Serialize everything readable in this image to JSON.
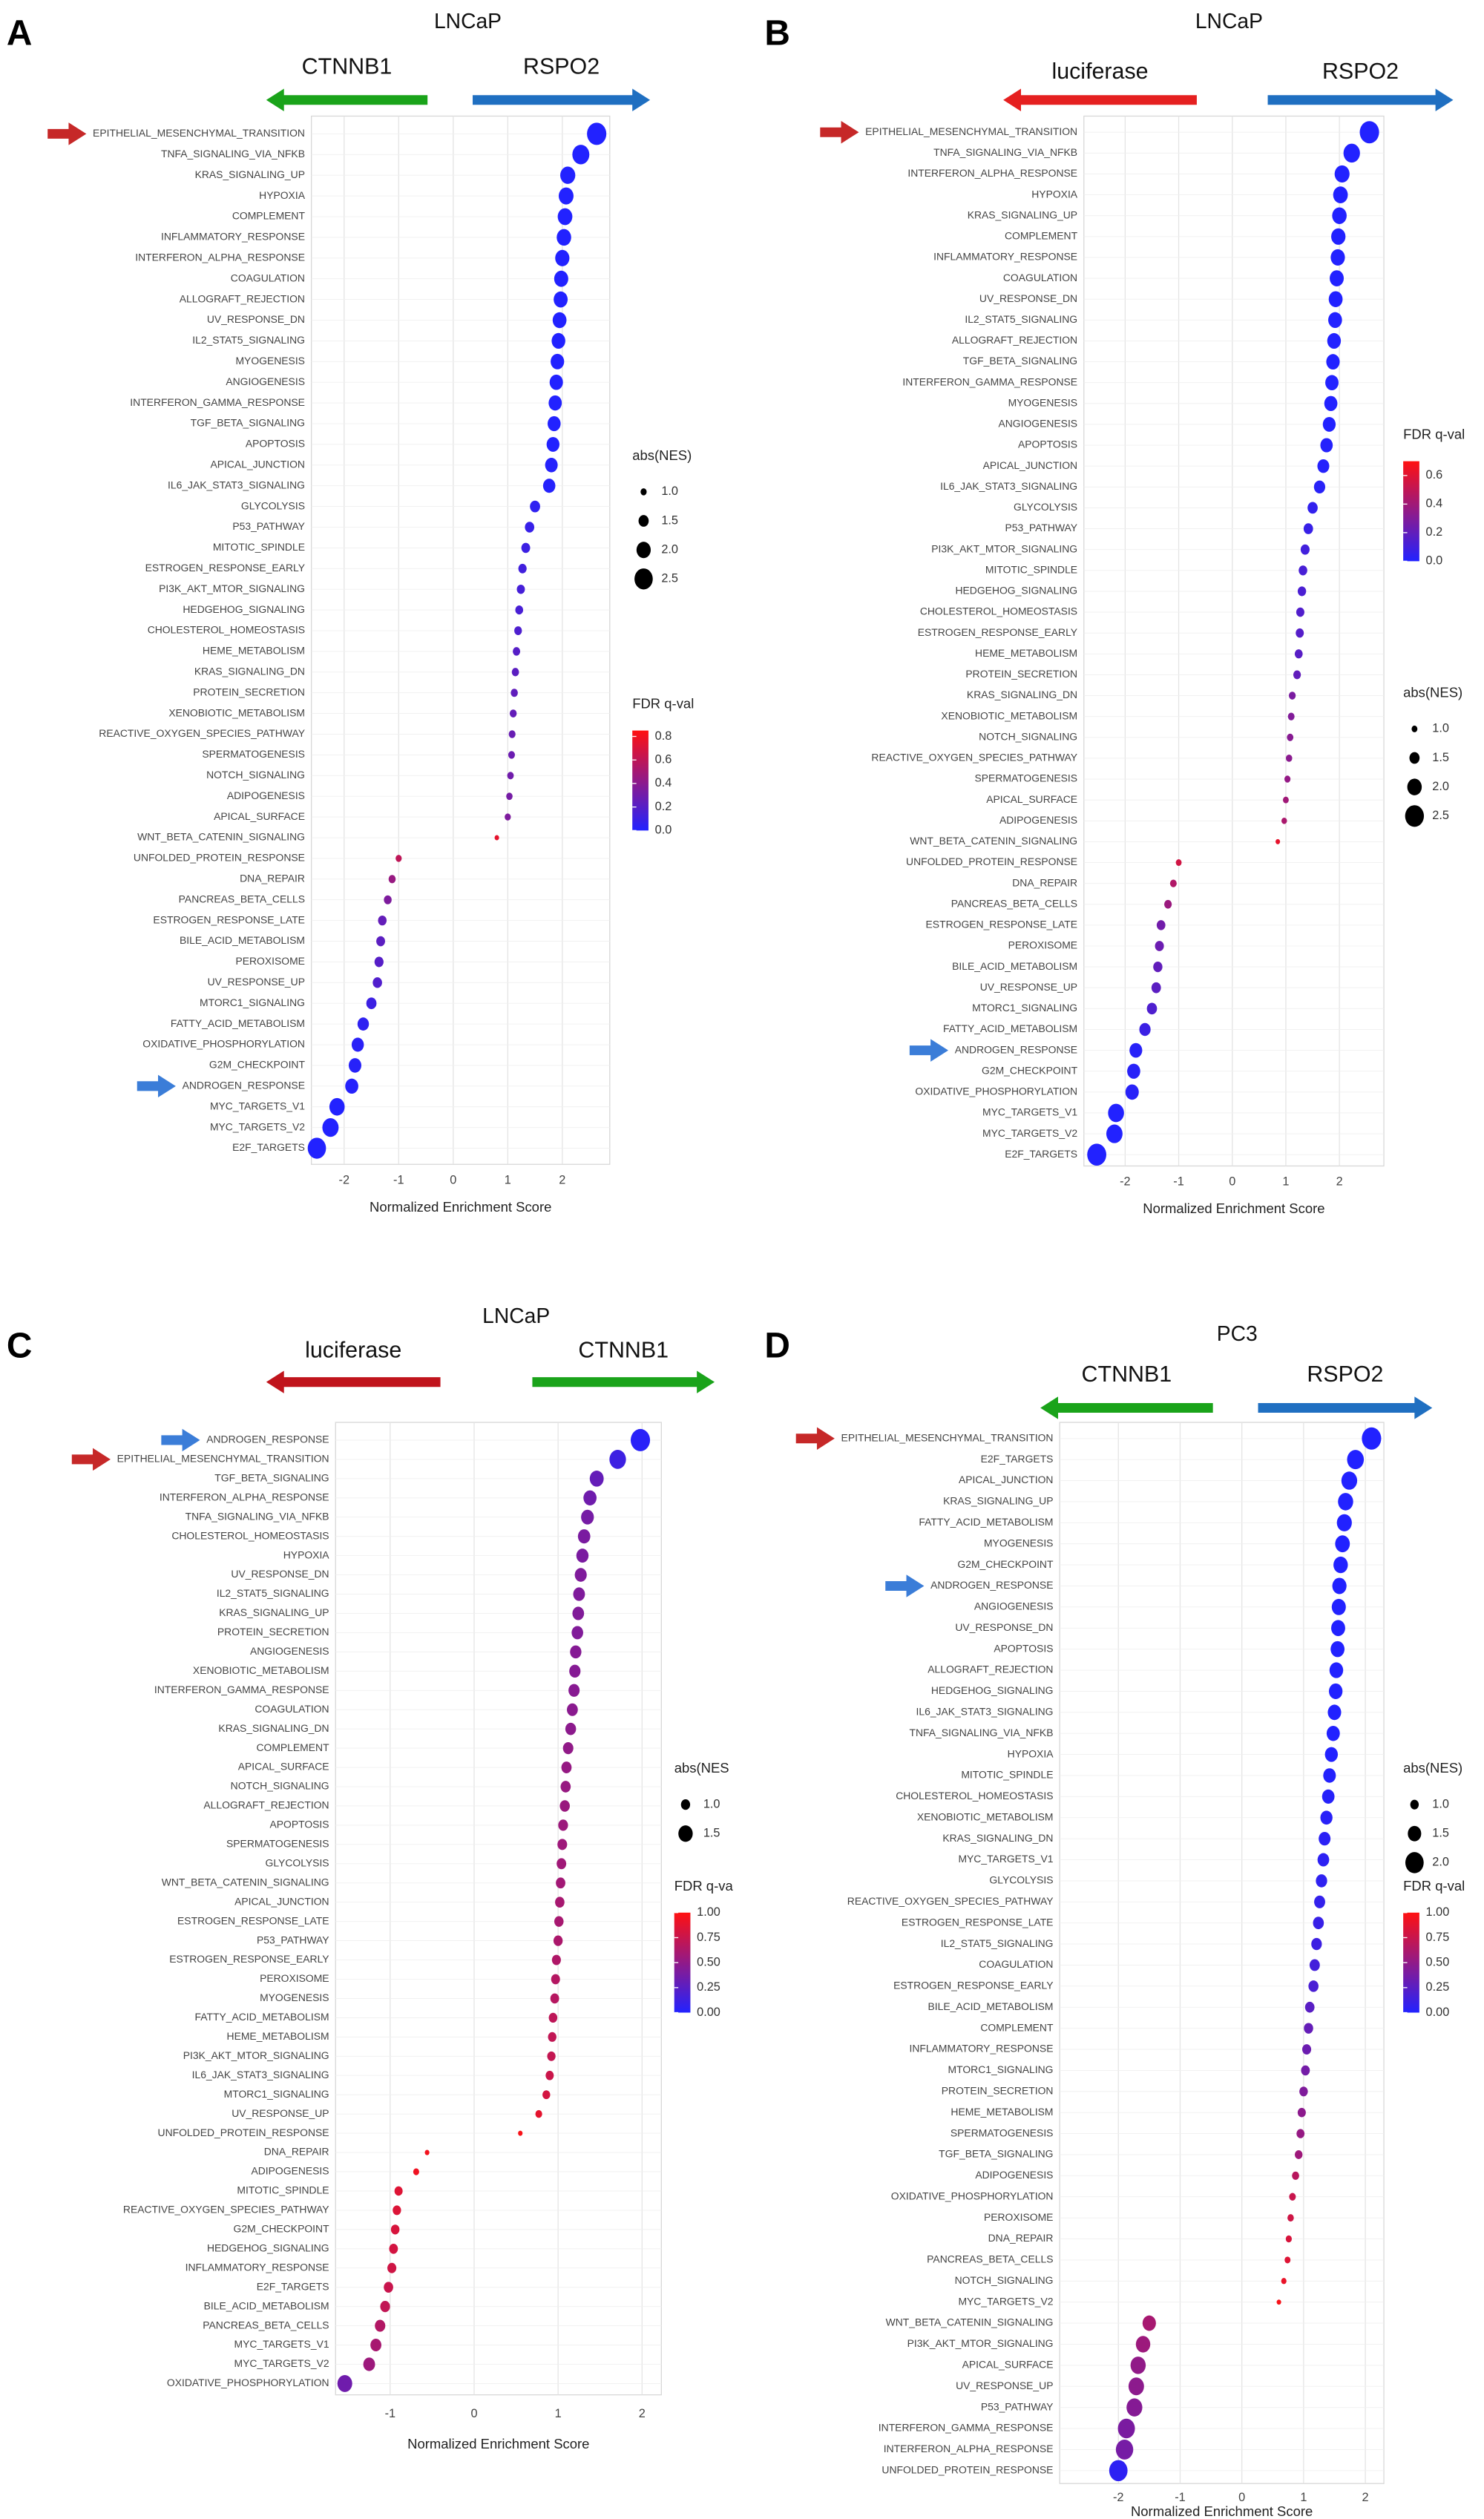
{
  "chart_data": [
    {
      "type": "dot",
      "panel": "A",
      "title": "LNCaP",
      "arrows": [
        {
          "label": "CTNNB1",
          "color": "#1aa31a",
          "dir": "left"
        },
        {
          "label": "RSPO2",
          "color": "#1f6fc1",
          "dir": "right"
        }
      ],
      "categories": [
        "EPITHELIAL_MESENCHYMAL_TRANSITION",
        "TNFA_SIGNALING_VIA_NFKB",
        "KRAS_SIGNALING_UP",
        "HYPOXIA",
        "COMPLEMENT",
        "INFLAMMATORY_RESPONSE",
        "INTERFERON_ALPHA_RESPONSE",
        "COAGULATION",
        "ALLOGRAFT_REJECTION",
        "UV_RESPONSE_DN",
        "IL2_STAT5_SIGNALING",
        "MYOGENESIS",
        "ANGIOGENESIS",
        "INTERFERON_GAMMA_RESPONSE",
        "TGF_BETA_SIGNALING",
        "APOPTOSIS",
        "APICAL_JUNCTION",
        "IL6_JAK_STAT3_SIGNALING",
        "GLYCOLYSIS",
        "P53_PATHWAY",
        "MITOTIC_SPINDLE",
        "ESTROGEN_RESPONSE_EARLY",
        "PI3K_AKT_MTOR_SIGNALING",
        "HEDGEHOG_SIGNALING",
        "CHOLESTEROL_HOMEOSTASIS",
        "HEME_METABOLISM",
        "KRAS_SIGNALING_DN",
        "PROTEIN_SECRETION",
        "XENOBIOTIC_METABOLISM",
        "REACTIVE_OXYGEN_SPECIES_PATHWAY",
        "SPERMATOGENESIS",
        "NOTCH_SIGNALING",
        "ADIPOGENESIS",
        "APICAL_SURFACE",
        "WNT_BETA_CATENIN_SIGNALING",
        "UNFOLDED_PROTEIN_RESPONSE",
        "DNA_REPAIR",
        "PANCREAS_BETA_CELLS",
        "ESTROGEN_RESPONSE_LATE",
        "BILE_ACID_METABOLISM",
        "PEROXISOME",
        "UV_RESPONSE_UP",
        "MTORC1_SIGNALING",
        "FATTY_ACID_METABOLISM",
        "OXIDATIVE_PHOSPHORYLATION",
        "G2M_CHECKPOINT",
        "ANDROGEN_RESPONSE",
        "MYC_TARGETS_V1",
        "MYC_TARGETS_V2",
        "E2F_TARGETS"
      ],
      "values": [
        2.63,
        2.34,
        2.1,
        2.07,
        2.05,
        2.03,
        2.0,
        1.98,
        1.97,
        1.95,
        1.93,
        1.91,
        1.89,
        1.87,
        1.85,
        1.83,
        1.8,
        1.76,
        1.5,
        1.4,
        1.33,
        1.27,
        1.24,
        1.21,
        1.19,
        1.16,
        1.14,
        1.12,
        1.1,
        1.08,
        1.07,
        1.05,
        1.03,
        1.0,
        0.8,
        -1.0,
        -1.12,
        -1.2,
        -1.3,
        -1.33,
        -1.36,
        -1.39,
        -1.5,
        -1.65,
        -1.75,
        -1.8,
        -1.86,
        -2.13,
        -2.25,
        -2.5
      ],
      "fdr": [
        0,
        0,
        0,
        0,
        0,
        0,
        0,
        0,
        0,
        0,
        0,
        0,
        0,
        0,
        0,
        0,
        0.01,
        0.01,
        0.05,
        0.08,
        0.1,
        0.12,
        0.14,
        0.15,
        0.17,
        0.2,
        0.22,
        0.24,
        0.25,
        0.27,
        0.28,
        0.3,
        0.32,
        0.35,
        0.75,
        0.6,
        0.45,
        0.35,
        0.25,
        0.22,
        0.2,
        0.18,
        0.1,
        0.05,
        0.03,
        0.02,
        0.01,
        0,
        0,
        0
      ],
      "xlim": [
        -2.6,
        2.87
      ],
      "xticks": [
        -2,
        -1,
        0,
        1,
        2
      ],
      "xlabel": "Normalized Enrichment Score",
      "grid": true,
      "size_legend": {
        "title": "abs(NES)",
        "ticks": [
          {
            "value": 1,
            "label": "1.0"
          },
          {
            "value": 1.5,
            "label": "1.5"
          },
          {
            "value": 2,
            "label": "2.0"
          },
          {
            "value": 2.5,
            "label": "2.5"
          }
        ]
      },
      "color_legend": {
        "title": "FDR q-val",
        "clim": [
          0,
          0.85
        ],
        "low_color": "#2222ff",
        "high_color": "#ff1111",
        "ticks": [
          {
            "value": 0,
            "label": "0.0"
          },
          {
            "value": 0.2,
            "label": "0.2"
          },
          {
            "value": 0.4,
            "label": "0.4"
          },
          {
            "value": 0.6,
            "label": "0.6"
          },
          {
            "value": 0.8,
            "label": "0.8"
          }
        ]
      },
      "pointers": [
        {
          "category": "EPITHELIAL_MESENCHYMAL_TRANSITION",
          "color": "#c62828"
        },
        {
          "category": "ANDROGEN_RESPONSE",
          "color": "#3b7dd8"
        }
      ]
    },
    {
      "type": "dot",
      "panel": "B",
      "title": "LNCaP",
      "arrows": [
        {
          "label": "luciferase",
          "color": "#e52020",
          "dir": "left"
        },
        {
          "label": "RSPO2",
          "color": "#1f6fc1",
          "dir": "right"
        }
      ],
      "categories": [
        "EPITHELIAL_MESENCHYMAL_TRANSITION",
        "TNFA_SIGNALING_VIA_NFKB",
        "INTERFERON_ALPHA_RESPONSE",
        "HYPOXIA",
        "KRAS_SIGNALING_UP",
        "COMPLEMENT",
        "INFLAMMATORY_RESPONSE",
        "COAGULATION",
        "UV_RESPONSE_DN",
        "IL2_STAT5_SIGNALING",
        "ALLOGRAFT_REJECTION",
        "TGF_BETA_SIGNALING",
        "INTERFERON_GAMMA_RESPONSE",
        "MYOGENESIS",
        "ANGIOGENESIS",
        "APOPTOSIS",
        "APICAL_JUNCTION",
        "IL6_JAK_STAT3_SIGNALING",
        "GLYCOLYSIS",
        "P53_PATHWAY",
        "PI3K_AKT_MTOR_SIGNALING",
        "MITOTIC_SPINDLE",
        "HEDGEHOG_SIGNALING",
        "CHOLESTEROL_HOMEOSTASIS",
        "ESTROGEN_RESPONSE_EARLY",
        "HEME_METABOLISM",
        "PROTEIN_SECRETION",
        "KRAS_SIGNALING_DN",
        "XENOBIOTIC_METABOLISM",
        "NOTCH_SIGNALING",
        "REACTIVE_OXYGEN_SPECIES_PATHWAY",
        "SPERMATOGENESIS",
        "APICAL_SURFACE",
        "ADIPOGENESIS",
        "WNT_BETA_CATENIN_SIGNALING",
        "UNFOLDED_PROTEIN_RESPONSE",
        "DNA_REPAIR",
        "PANCREAS_BETA_CELLS",
        "ESTROGEN_RESPONSE_LATE",
        "PEROXISOME",
        "BILE_ACID_METABOLISM",
        "UV_RESPONSE_UP",
        "MTORC1_SIGNALING",
        "FATTY_ACID_METABOLISM",
        "ANDROGEN_RESPONSE",
        "G2M_CHECKPOINT",
        "OXIDATIVE_PHOSPHORYLATION",
        "MYC_TARGETS_V1",
        "MYC_TARGETS_V2",
        "E2F_TARGETS"
      ],
      "values": [
        2.56,
        2.23,
        2.05,
        2.02,
        2.0,
        1.98,
        1.97,
        1.95,
        1.93,
        1.92,
        1.9,
        1.88,
        1.86,
        1.84,
        1.81,
        1.76,
        1.7,
        1.63,
        1.5,
        1.42,
        1.36,
        1.32,
        1.3,
        1.27,
        1.26,
        1.24,
        1.21,
        1.12,
        1.1,
        1.08,
        1.06,
        1.03,
        1.0,
        0.97,
        0.85,
        -1.0,
        -1.1,
        -1.2,
        -1.33,
        -1.36,
        -1.39,
        -1.42,
        -1.5,
        -1.63,
        -1.8,
        -1.84,
        -1.87,
        -2.17,
        -2.2,
        -2.53
      ],
      "fdr": [
        0,
        0,
        0,
        0,
        0,
        0,
        0,
        0,
        0,
        0,
        0,
        0,
        0,
        0,
        0,
        0.01,
        0.01,
        0.02,
        0.05,
        0.07,
        0.1,
        0.12,
        0.13,
        0.15,
        0.16,
        0.17,
        0.2,
        0.28,
        0.3,
        0.32,
        0.33,
        0.36,
        0.4,
        0.43,
        0.62,
        0.55,
        0.45,
        0.38,
        0.25,
        0.23,
        0.2,
        0.18,
        0.14,
        0.08,
        0.02,
        0.02,
        0.02,
        0,
        0,
        0
      ],
      "xlim": [
        -2.77,
        2.83
      ],
      "xticks": [
        -2,
        -1,
        0,
        1,
        2
      ],
      "xlabel": "Normalized Enrichment Score",
      "grid": true,
      "size_legend": {
        "title": "abs(NES)",
        "ticks": [
          {
            "value": 1,
            "label": "1.0"
          },
          {
            "value": 1.5,
            "label": "1.5"
          },
          {
            "value": 2,
            "label": "2.0"
          },
          {
            "value": 2.5,
            "label": "2.5"
          }
        ]
      },
      "color_legend": {
        "title": "FDR q-val",
        "clim": [
          0,
          0.7
        ],
        "low_color": "#2222ff",
        "high_color": "#ff1111",
        "ticks": [
          {
            "value": 0,
            "label": "0.0"
          },
          {
            "value": 0.2,
            "label": "0.2"
          },
          {
            "value": 0.4,
            "label": "0.4"
          },
          {
            "value": 0.6,
            "label": "0.6"
          }
        ]
      },
      "pointers": [
        {
          "category": "EPITHELIAL_MESENCHYMAL_TRANSITION",
          "color": "#c62828"
        },
        {
          "category": "ANDROGEN_RESPONSE",
          "color": "#3b7dd8"
        }
      ]
    },
    {
      "type": "dot",
      "panel": "C",
      "title": "LNCaP",
      "arrows": [
        {
          "label": "luciferase",
          "color": "#c0141c",
          "dir": "left"
        },
        {
          "label": "CTNNB1",
          "color": "#1aa31a",
          "dir": "right"
        }
      ],
      "categories": [
        "ANDROGEN_RESPONSE",
        "EPITHELIAL_MESENCHYMAL_TRANSITION",
        "TGF_BETA_SIGNALING",
        "INTERFERON_ALPHA_RESPONSE",
        "TNFA_SIGNALING_VIA_NFKB",
        "CHOLESTEROL_HOMEOSTASIS",
        "HYPOXIA",
        "UV_RESPONSE_DN",
        "IL2_STAT5_SIGNALING",
        "KRAS_SIGNALING_UP",
        "PROTEIN_SECRETION",
        "ANGIOGENESIS",
        "XENOBIOTIC_METABOLISM",
        "INTERFERON_GAMMA_RESPONSE",
        "COAGULATION",
        "KRAS_SIGNALING_DN",
        "COMPLEMENT",
        "APICAL_SURFACE",
        "NOTCH_SIGNALING",
        "ALLOGRAFT_REJECTION",
        "APOPTOSIS",
        "SPERMATOGENESIS",
        "GLYCOLYSIS",
        "WNT_BETA_CATENIN_SIGNALING",
        "APICAL_JUNCTION",
        "ESTROGEN_RESPONSE_LATE",
        "P53_PATHWAY",
        "ESTROGEN_RESPONSE_EARLY",
        "PEROXISOME",
        "MYOGENESIS",
        "FATTY_ACID_METABOLISM",
        "HEME_METABOLISM",
        "PI3K_AKT_MTOR_SIGNALING",
        "IL6_JAK_STAT3_SIGNALING",
        "MTORC1_SIGNALING",
        "UV_RESPONSE_UP",
        "UNFOLDED_PROTEIN_RESPONSE",
        "DNA_REPAIR",
        "ADIPOGENESIS",
        "MITOTIC_SPINDLE",
        "REACTIVE_OXYGEN_SPECIES_PATHWAY",
        "G2M_CHECKPOINT",
        "HEDGEHOG_SIGNALING",
        "INFLAMMATORY_RESPONSE",
        "E2F_TARGETS",
        "BILE_ACID_METABOLISM",
        "PANCREAS_BETA_CELLS",
        "MYC_TARGETS_V1",
        "MYC_TARGETS_V2",
        "OXIDATIVE_PHOSPHORYLATION"
      ],
      "values": [
        1.98,
        1.71,
        1.46,
        1.38,
        1.35,
        1.31,
        1.29,
        1.27,
        1.25,
        1.24,
        1.23,
        1.21,
        1.2,
        1.19,
        1.17,
        1.15,
        1.12,
        1.1,
        1.09,
        1.08,
        1.06,
        1.05,
        1.04,
        1.03,
        1.02,
        1.01,
        1.0,
        0.98,
        0.97,
        0.96,
        0.94,
        0.93,
        0.92,
        0.9,
        0.86,
        0.77,
        0.55,
        -0.56,
        -0.69,
        -0.9,
        -0.92,
        -0.94,
        -0.96,
        -0.98,
        -1.02,
        -1.06,
        -1.12,
        -1.17,
        -1.25,
        -1.54
      ],
      "fdr": [
        0.03,
        0.12,
        0.3,
        0.35,
        0.38,
        0.4,
        0.4,
        0.42,
        0.42,
        0.43,
        0.43,
        0.45,
        0.45,
        0.46,
        0.47,
        0.48,
        0.5,
        0.52,
        0.53,
        0.54,
        0.55,
        0.56,
        0.57,
        0.58,
        0.6,
        0.6,
        0.62,
        0.64,
        0.66,
        0.67,
        0.7,
        0.72,
        0.73,
        0.76,
        0.8,
        0.88,
        0.97,
        0.95,
        0.93,
        0.85,
        0.84,
        0.82,
        0.8,
        0.78,
        0.75,
        0.72,
        0.65,
        0.6,
        0.55,
        0.35
      ],
      "xlim": [
        -1.65,
        2.23
      ],
      "xticks": [
        -1,
        0,
        1,
        2
      ],
      "xlabel": "Normalized Enrichment Score",
      "grid": true,
      "size_legend": {
        "title": "abs(NES",
        "ticks": [
          {
            "value": 1,
            "label": "1.0"
          },
          {
            "value": 1.5,
            "label": "1.5"
          }
        ]
      },
      "color_legend": {
        "title": "FDR q-va",
        "clim": [
          0,
          1
        ],
        "low_color": "#2222ff",
        "high_color": "#ff1111",
        "ticks": [
          {
            "value": 0,
            "label": "0.00"
          },
          {
            "value": 0.25,
            "label": "0.25"
          },
          {
            "value": 0.5,
            "label": "0.50"
          },
          {
            "value": 0.75,
            "label": "0.75"
          },
          {
            "value": 1,
            "label": "1.00"
          }
        ]
      },
      "pointers": [
        {
          "category": "ANDROGEN_RESPONSE",
          "color": "#3b7dd8"
        },
        {
          "category": "EPITHELIAL_MESENCHYMAL_TRANSITION",
          "color": "#c62828"
        }
      ]
    },
    {
      "type": "dot",
      "panel": "D",
      "title": "PC3",
      "arrows": [
        {
          "label": "CTNNB1",
          "color": "#1aa31a",
          "dir": "left"
        },
        {
          "label": "RSPO2",
          "color": "#1f6fc1",
          "dir": "right"
        }
      ],
      "categories": [
        "EPITHELIAL_MESENCHYMAL_TRANSITION",
        "E2F_TARGETS",
        "APICAL_JUNCTION",
        "KRAS_SIGNALING_UP",
        "FATTY_ACID_METABOLISM",
        "MYOGENESIS",
        "G2M_CHECKPOINT",
        "ANDROGEN_RESPONSE",
        "ANGIOGENESIS",
        "UV_RESPONSE_DN",
        "APOPTOSIS",
        "ALLOGRAFT_REJECTION",
        "HEDGEHOG_SIGNALING",
        "IL6_JAK_STAT3_SIGNALING",
        "TNFA_SIGNALING_VIA_NFKB",
        "HYPOXIA",
        "MITOTIC_SPINDLE",
        "CHOLESTEROL_HOMEOSTASIS",
        "XENOBIOTIC_METABOLISM",
        "KRAS_SIGNALING_DN",
        "MYC_TARGETS_V1",
        "GLYCOLYSIS",
        "REACTIVE_OXYGEN_SPECIES_PATHWAY",
        "ESTROGEN_RESPONSE_LATE",
        "IL2_STAT5_SIGNALING",
        "COAGULATION",
        "ESTROGEN_RESPONSE_EARLY",
        "BILE_ACID_METABOLISM",
        "COMPLEMENT",
        "INFLAMMATORY_RESPONSE",
        "MTORC1_SIGNALING",
        "PROTEIN_SECRETION",
        "HEME_METABOLISM",
        "SPERMATOGENESIS",
        "TGF_BETA_SIGNALING",
        "ADIPOGENESIS",
        "OXIDATIVE_PHOSPHORYLATION",
        "PEROXISOME",
        "DNA_REPAIR",
        "PANCREAS_BETA_CELLS",
        "NOTCH_SIGNALING",
        "MYC_TARGETS_V2",
        "WNT_BETA_CATENIN_SIGNALING",
        "PI3K_AKT_MTOR_SIGNALING",
        "APICAL_SURFACE",
        "UV_RESPONSE_UP",
        "P53_PATHWAY",
        "INTERFERON_GAMMA_RESPONSE",
        "INTERFERON_ALPHA_RESPONSE",
        "UNFOLDED_PROTEIN_RESPONSE"
      ],
      "values": [
        2.1,
        1.84,
        1.74,
        1.68,
        1.66,
        1.63,
        1.6,
        1.58,
        1.57,
        1.56,
        1.55,
        1.53,
        1.52,
        1.5,
        1.48,
        1.45,
        1.42,
        1.4,
        1.37,
        1.34,
        1.32,
        1.29,
        1.26,
        1.24,
        1.21,
        1.18,
        1.16,
        1.1,
        1.08,
        1.05,
        1.03,
        1.0,
        0.97,
        0.95,
        0.92,
        0.87,
        0.82,
        0.79,
        0.76,
        0.74,
        0.68,
        0.6,
        -1.5,
        -1.6,
        -1.68,
        -1.71,
        -1.74,
        -1.87,
        -1.9,
        -2.0
      ],
      "fdr": [
        0,
        0,
        0,
        0,
        0,
        0,
        0,
        0,
        0,
        0,
        0,
        0,
        0,
        0,
        0,
        0,
        0.01,
        0.02,
        0.03,
        0.04,
        0.05,
        0.06,
        0.08,
        0.1,
        0.12,
        0.15,
        0.18,
        0.25,
        0.3,
        0.33,
        0.37,
        0.42,
        0.48,
        0.52,
        0.56,
        0.68,
        0.75,
        0.78,
        0.82,
        0.85,
        0.9,
        0.97,
        0.6,
        0.55,
        0.5,
        0.48,
        0.45,
        0.4,
        0.38,
        0.05
      ],
      "xlim": [
        -2.95,
        2.3
      ],
      "xticks": [
        -2,
        -1,
        0,
        1,
        2
      ],
      "xlabel": "Normalized Enrichment Score",
      "grid": true,
      "size_legend": {
        "title": "abs(NES)",
        "ticks": [
          {
            "value": 1,
            "label": "1.0"
          },
          {
            "value": 1.5,
            "label": "1.5"
          },
          {
            "value": 2,
            "label": "2.0"
          }
        ]
      },
      "color_legend": {
        "title": "FDR q-val",
        "clim": [
          0,
          1
        ],
        "low_color": "#2222ff",
        "high_color": "#ff1111",
        "ticks": [
          {
            "value": 0,
            "label": "0.00"
          },
          {
            "value": 0.25,
            "label": "0.25"
          },
          {
            "value": 0.5,
            "label": "0.50"
          },
          {
            "value": 0.75,
            "label": "0.75"
          },
          {
            "value": 1,
            "label": "1.00"
          }
        ]
      },
      "pointers": [
        {
          "category": "EPITHELIAL_MESENCHYMAL_TRANSITION",
          "color": "#c62828"
        },
        {
          "category": "ANDROGEN_RESPONSE",
          "color": "#3b7dd8"
        }
      ]
    }
  ]
}
